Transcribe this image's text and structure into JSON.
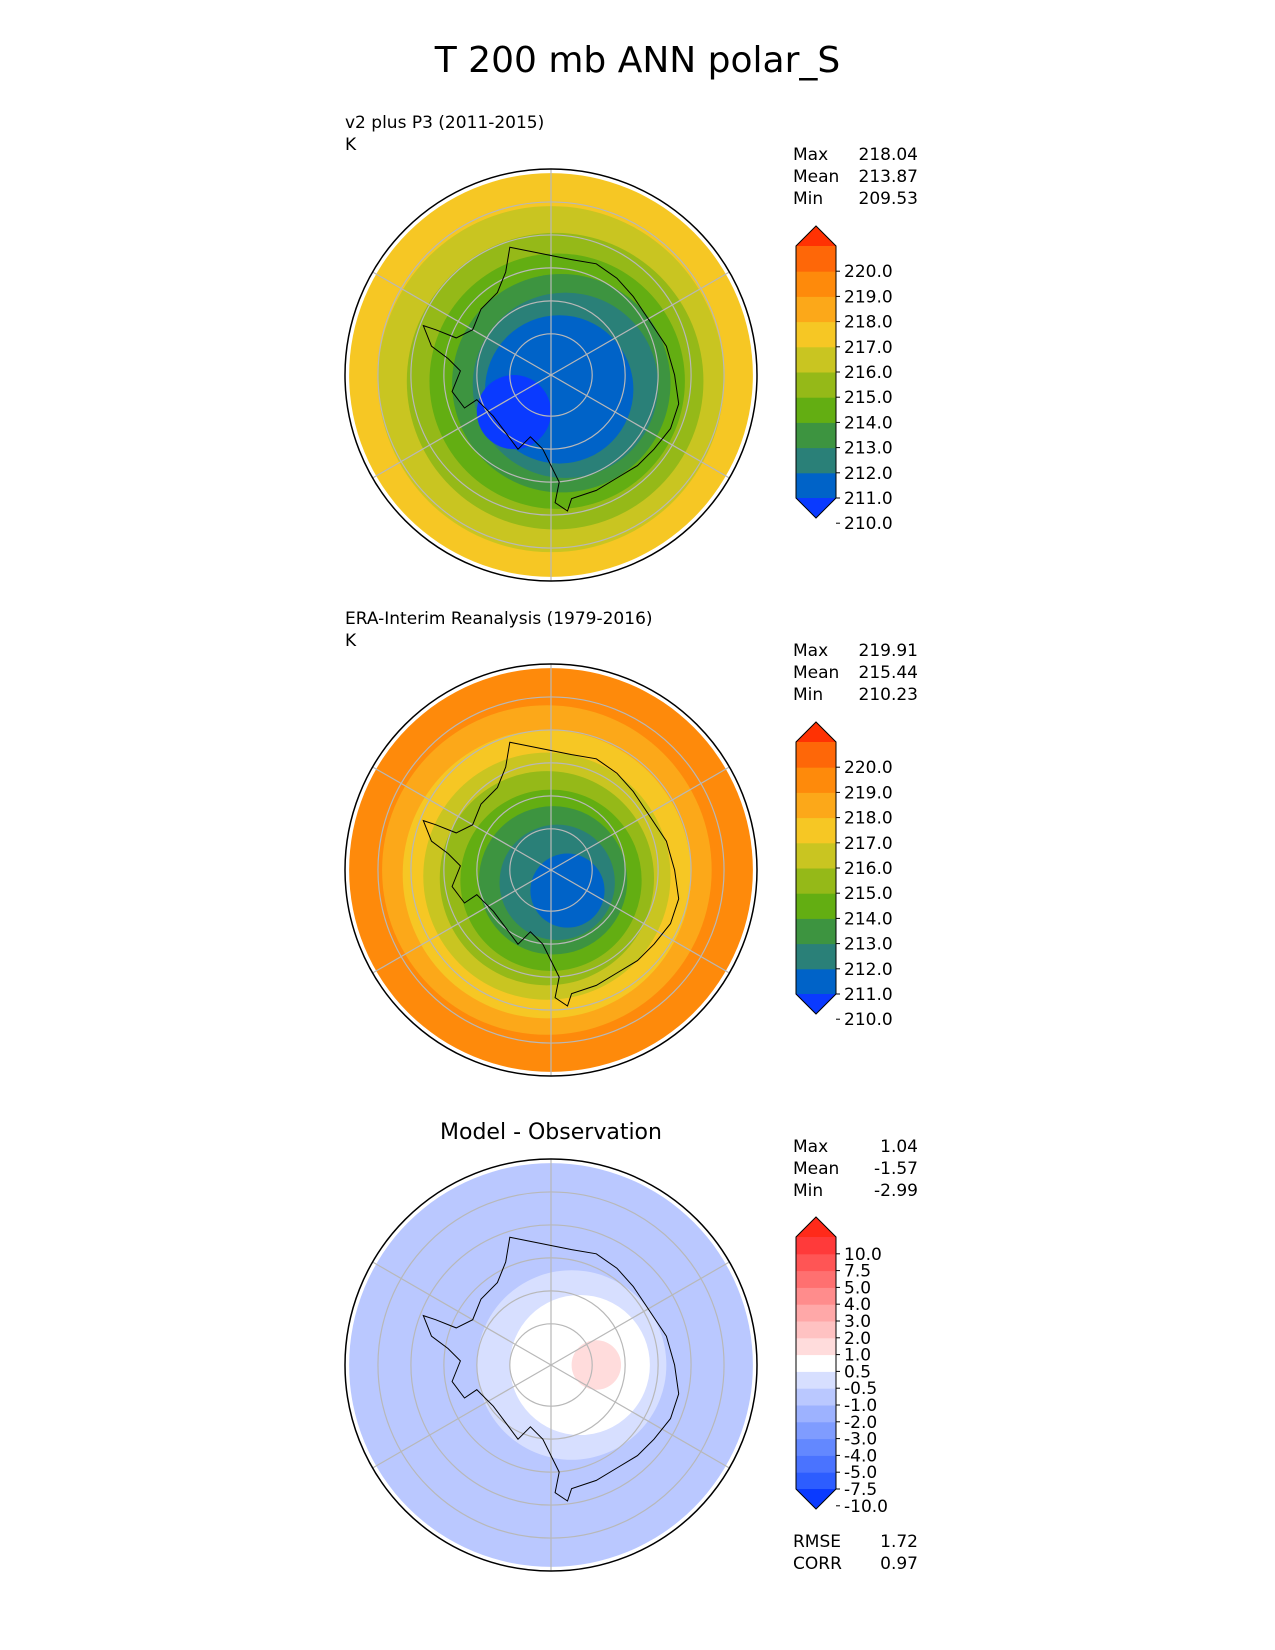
{
  "title": "T 200 mb ANN polar_S",
  "colors": {
    "test_ref_levels": [
      "#0a3aff",
      "#0063c8",
      "#2a8078",
      "#3d9440",
      "#63ae12",
      "#95b918",
      "#c9c521",
      "#f6c724",
      "#fca819",
      "#fe8a0b",
      "#fe6708",
      "#ff3203"
    ],
    "diff_levels": [
      "#0a3aff",
      "#2d5dff",
      "#4a73ff",
      "#6388ff",
      "#7f9cff",
      "#9db2ff",
      "#bac8ff",
      "#d7dfff",
      "#ffffff",
      "#ffdcdc",
      "#ffc2c2",
      "#ffa8a8",
      "#ff8c8c",
      "#ff7070",
      "#ff5555",
      "#ff3a3a",
      "#ff2a1a"
    ],
    "grid": "#b8b8b8",
    "coast": "#000000"
  },
  "chart_data": [
    {
      "type": "heatmap",
      "name": "test",
      "projection": "polar_S",
      "title_left": "v2 plus P3 (2011-2015)",
      "units": "K",
      "stats": {
        "max_label": "Max",
        "max": "218.04",
        "mean_label": "Mean",
        "mean": "213.87",
        "min_label": "Min",
        "min": "209.53"
      },
      "colorbar_ticks": [
        "220.0",
        "219.0",
        "218.0",
        "217.0",
        "216.0",
        "215.0",
        "214.0",
        "213.0",
        "212.0",
        "211.0",
        "210.0"
      ],
      "field": {
        "bands": [
          {
            "rho": 0.98,
            "level": 7,
            "offset": [
              0.0,
              0.0
            ]
          },
          {
            "rho": 0.84,
            "level": 6,
            "offset": [
              0.0,
              0.02
            ]
          },
          {
            "rho": 0.72,
            "level": 5,
            "offset": [
              0.02,
              0.03
            ]
          },
          {
            "rho": 0.62,
            "level": 4,
            "offset": [
              0.03,
              0.03
            ]
          },
          {
            "rho": 0.53,
            "level": 3,
            "offset": [
              0.05,
              0.04
            ]
          },
          {
            "rho": 0.45,
            "level": 2,
            "offset": [
              0.07,
              0.05
            ]
          },
          {
            "rho": 0.36,
            "level": 1,
            "offset": [
              0.04,
              0.07
            ]
          },
          {
            "rho": 0.18,
            "level": 0,
            "offset": [
              -0.18,
              0.18
            ]
          }
        ]
      }
    },
    {
      "type": "heatmap",
      "name": "reference",
      "projection": "polar_S",
      "title_left": "ERA-Interim Reanalysis (1979-2016)",
      "units": "K",
      "stats": {
        "max_label": "Max",
        "max": "219.91",
        "mean_label": "Mean",
        "mean": "215.44",
        "min_label": "Min",
        "min": "210.23"
      },
      "colorbar_ticks": [
        "220.0",
        "219.0",
        "218.0",
        "217.0",
        "216.0",
        "215.0",
        "214.0",
        "213.0",
        "212.0",
        "211.0",
        "210.0"
      ],
      "field": {
        "bands": [
          {
            "rho": 0.98,
            "level": 9,
            "offset": [
              0.0,
              0.0
            ]
          },
          {
            "rho": 0.8,
            "level": 8,
            "offset": [
              -0.02,
              0.0
            ]
          },
          {
            "rho": 0.7,
            "level": 7,
            "offset": [
              -0.02,
              0.02
            ]
          },
          {
            "rho": 0.6,
            "level": 6,
            "offset": [
              -0.02,
              0.03
            ]
          },
          {
            "rho": 0.52,
            "level": 5,
            "offset": [
              -0.02,
              0.04
            ]
          },
          {
            "rho": 0.44,
            "level": 4,
            "offset": [
              0.0,
              0.05
            ]
          },
          {
            "rho": 0.36,
            "level": 3,
            "offset": [
              0.01,
              0.05
            ]
          },
          {
            "rho": 0.28,
            "level": 2,
            "offset": [
              0.03,
              0.06
            ]
          },
          {
            "rho": 0.18,
            "level": 1,
            "offset": [
              0.08,
              0.1
            ]
          }
        ]
      }
    },
    {
      "type": "heatmap",
      "name": "difference",
      "projection": "polar_S",
      "title_center": "Model - Observation",
      "stats": {
        "max_label": "Max",
        "max": "1.04",
        "mean_label": "Mean",
        "mean": "-1.57",
        "min_label": "Min",
        "min": "-2.99"
      },
      "metrics": {
        "rmse_label": "RMSE",
        "rmse": "1.72",
        "corr_label": "CORR",
        "corr": "0.97"
      },
      "colorbar_ticks": [
        "10.0",
        "7.5",
        "5.0",
        "4.0",
        "3.0",
        "2.0",
        "1.0",
        "0.5",
        "-0.5",
        "-1.0",
        "-2.0",
        "-3.0",
        "-4.0",
        "-5.0",
        "-7.5",
        "-10.0"
      ],
      "field": {
        "bands": [
          {
            "rho": 0.98,
            "level": 6,
            "offset": [
              0.0,
              0.0
            ]
          },
          {
            "rho": 0.7,
            "level": 6,
            "offset": [
              0.0,
              0.0
            ]
          },
          {
            "rho": 0.46,
            "level": 7,
            "offset": [
              0.1,
              0.0
            ]
          },
          {
            "rho": 0.34,
            "level": 8,
            "offset": [
              0.14,
              0.0
            ]
          },
          {
            "rho": 0.12,
            "level": 9,
            "offset": [
              0.22,
              0.0
            ]
          }
        ]
      }
    }
  ]
}
